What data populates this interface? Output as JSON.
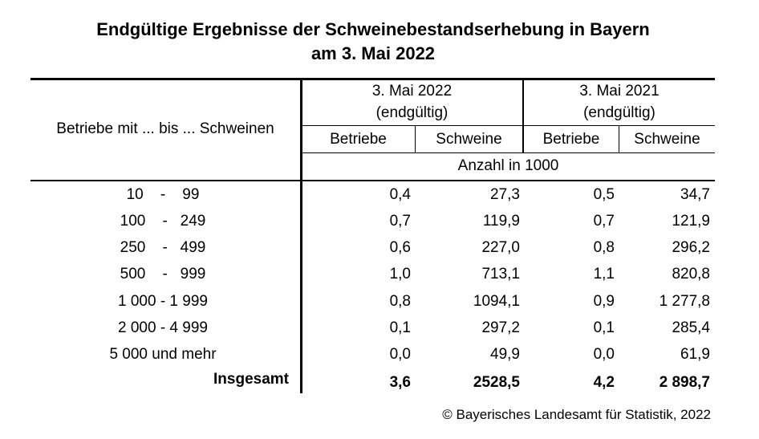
{
  "title": {
    "line1": "Endgültige Ergebnisse der Schweinebestandserhebung in Bayern",
    "line2": "am 3. Mai 2022"
  },
  "header": {
    "row_label": "Betriebe mit ... bis ... Schweinen",
    "group_2022": {
      "date": "3. Mai 2022",
      "note": "(endgültig)"
    },
    "group_2021": {
      "date": "3. Mai 2021",
      "note": "(endgültig)"
    },
    "col_betriebe": "Betriebe",
    "col_schweine": "Schweine",
    "unit": "Anzahl in 1000"
  },
  "rows": [
    {
      "label": "10    -    99",
      "b2022": "0,4",
      "s2022": "27,3",
      "b2021": "0,5",
      "s2021": "34,7"
    },
    {
      "label": "100    -   249",
      "b2022": "0,7",
      "s2022": "119,9",
      "b2021": "0,7",
      "s2021": "121,9"
    },
    {
      "label": "250    -   499",
      "b2022": "0,6",
      "s2022": "227,0",
      "b2021": "0,8",
      "s2021": "296,2"
    },
    {
      "label": "500    -   999",
      "b2022": "1,0",
      "s2022": "713,1",
      "b2021": "1,1",
      "s2021": "820,8"
    },
    {
      "label": "1 000 - 1 999",
      "b2022": "0,8",
      "s2022": "1094,1",
      "b2021": "0,9",
      "s2021": "1 277,8"
    },
    {
      "label": "2 000 - 4 999",
      "b2022": "0,1",
      "s2022": "297,2",
      "b2021": "0,1",
      "s2021": "285,4"
    },
    {
      "label": "5 000 und mehr",
      "b2022": "0,0",
      "s2022": "49,9",
      "b2021": "0,0",
      "s2021": "61,9"
    }
  ],
  "total": {
    "label": "Insgesamt",
    "b2022": "3,6",
    "s2022": "2528,5",
    "b2021": "4,2",
    "s2021": "2 898,7"
  },
  "footer": "© Bayerisches Landesamt für Statistik, 2022"
}
